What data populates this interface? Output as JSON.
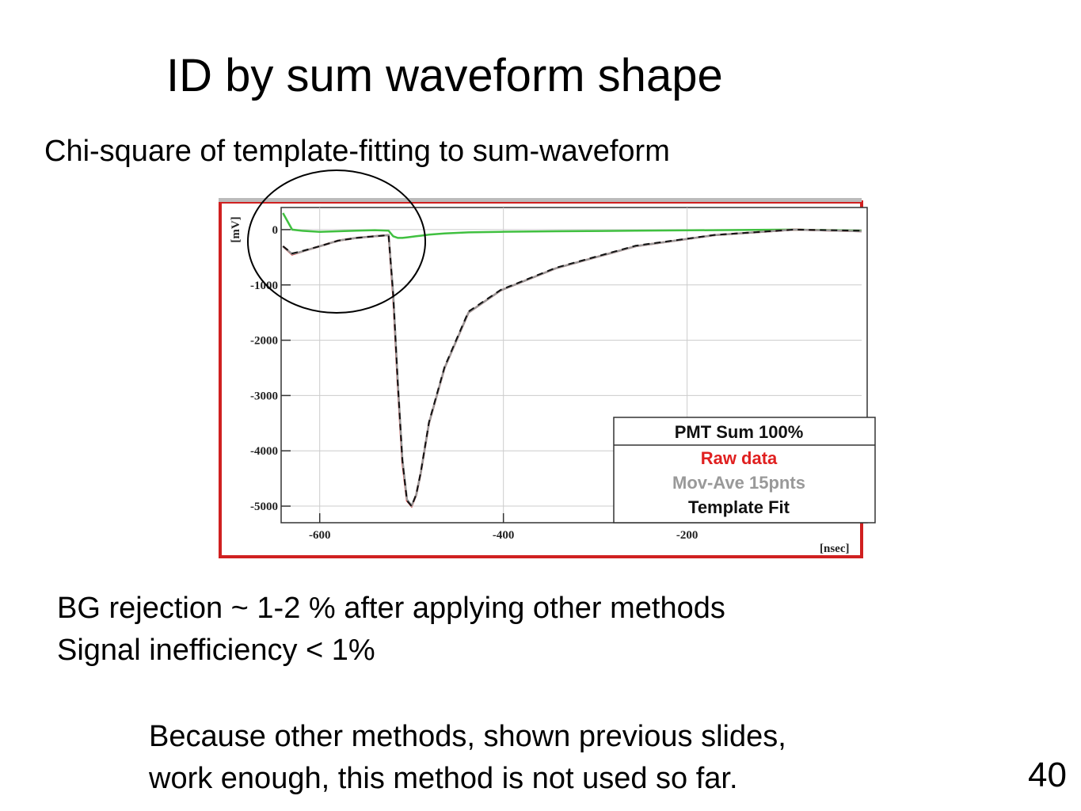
{
  "slide": {
    "title": "ID by sum waveform shape",
    "subtitle": "Chi-square of template-fitting to sum-waveform",
    "bullets": [
      "BG rejection ~ 1-2 %  after applying other methods",
      "Signal inefficiency < 1%"
    ],
    "note": [
      "Because other methods, shown previous slides,",
      "work enough, this method is not used so far."
    ],
    "page_number": "40"
  },
  "chart_data": {
    "type": "line",
    "x_label": "[nsec]",
    "y_label": "[mV]",
    "legend_title": "PMT Sum 100%",
    "x": [
      -640,
      -630,
      -620,
      -600,
      -580,
      -560,
      -540,
      -525,
      -520,
      -515,
      -510,
      -505,
      -500,
      -495,
      -490,
      -481,
      -464,
      -438,
      -403,
      -343,
      -256,
      -170,
      -83,
      -10
    ],
    "series": [
      {
        "name": "Raw data",
        "color": "#e02020",
        "dash": false,
        "values": [
          -300,
          -450,
          -400,
          -300,
          -200,
          -150,
          -120,
          -100,
          -1200,
          -2800,
          -4200,
          -4900,
          -5000,
          -4800,
          -4400,
          -3500,
          -2500,
          -1500,
          -1100,
          -700,
          -300,
          -100,
          0,
          -30
        ]
      },
      {
        "name": "Mov-Ave 15pnts",
        "color": "#999999",
        "dash": false,
        "values": [
          -300,
          -440,
          -400,
          -300,
          -200,
          -150,
          -120,
          -100,
          -1150,
          -2750,
          -4150,
          -4880,
          -4990,
          -4800,
          -4400,
          -3500,
          -2500,
          -1500,
          -1100,
          -700,
          -300,
          -100,
          0,
          -30
        ]
      },
      {
        "name": "Template Fit",
        "color": "#111111",
        "dash": true,
        "values": [
          -300,
          -430,
          -390,
          -300,
          -200,
          -150,
          -120,
          -100,
          -1180,
          -2780,
          -4180,
          -4900,
          -5000,
          -4790,
          -4390,
          -3480,
          -2480,
          -1480,
          -1090,
          -690,
          -290,
          -95,
          0,
          -20
        ]
      },
      {
        "color": "#40c040",
        "dash": false,
        "values": [
          300,
          0,
          -20,
          -40,
          -30,
          -20,
          -10,
          -20,
          -120,
          -150,
          -150,
          -140,
          -130,
          -120,
          -110,
          -90,
          -70,
          -50,
          -40,
          -30,
          -20,
          -10,
          0,
          -20
        ]
      }
    ],
    "xlim": [
      -642,
      -10
    ],
    "ylim": [
      -5300,
      400
    ],
    "xticks": [
      -600,
      -400,
      -200
    ],
    "yticks": [
      0,
      -1000,
      -2000,
      -3000,
      -4000,
      -5000
    ],
    "grid": true
  }
}
